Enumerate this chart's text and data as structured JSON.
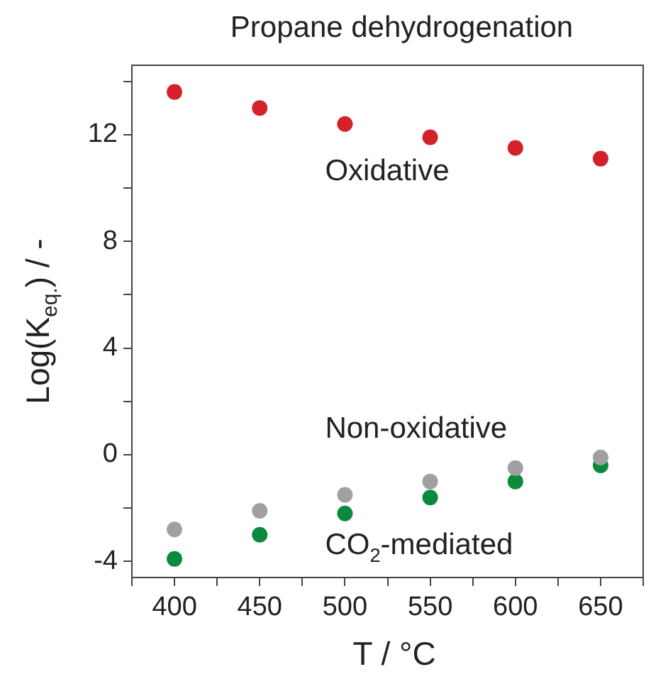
{
  "chart_data": {
    "type": "scatter",
    "title": "Propane dehydrogenation",
    "xlabel": "T / °C",
    "ylabel": "Log(K$_{eq.}$) / -",
    "x": [
      400,
      450,
      500,
      550,
      600,
      650
    ],
    "series": [
      {
        "name": "Oxidative",
        "color": "#d42028",
        "values": [
          13.6,
          13.0,
          12.4,
          11.9,
          11.5,
          11.1
        ]
      },
      {
        "name": "Non-oxidative",
        "color": "#a0a0a0",
        "values": [
          -2.8,
          -2.1,
          -1.5,
          -1.0,
          -0.5,
          -0.1
        ]
      },
      {
        "name": "CO$_{2}$-mediated",
        "color": "#0a8a3c",
        "values": [
          -3.9,
          -3.0,
          -2.2,
          -1.6,
          -1.0,
          -0.4
        ]
      }
    ],
    "xlim": [
      375,
      675
    ],
    "xticks": [
      {
        "value": 375,
        "label": null
      },
      400,
      {
        "value": 425,
        "label": null
      },
      450,
      {
        "value": 475,
        "label": null
      },
      500,
      {
        "value": 525,
        "label": null
      },
      550,
      {
        "value": 575,
        "label": null
      },
      600,
      {
        "value": 625,
        "label": null
      },
      650,
      {
        "value": 675,
        "label": null
      }
    ],
    "ylim": [
      -4.6,
      14.6
    ],
    "yticks": [
      -4,
      {
        "value": -2,
        "label": null
      },
      0,
      {
        "value": 2,
        "label": null
      },
      4,
      {
        "value": 6,
        "label": null
      },
      8,
      {
        "value": 10,
        "label": null
      },
      12,
      {
        "value": 14,
        "label": null
      }
    ],
    "grid": false,
    "legend": false,
    "marker": "circle"
  }
}
